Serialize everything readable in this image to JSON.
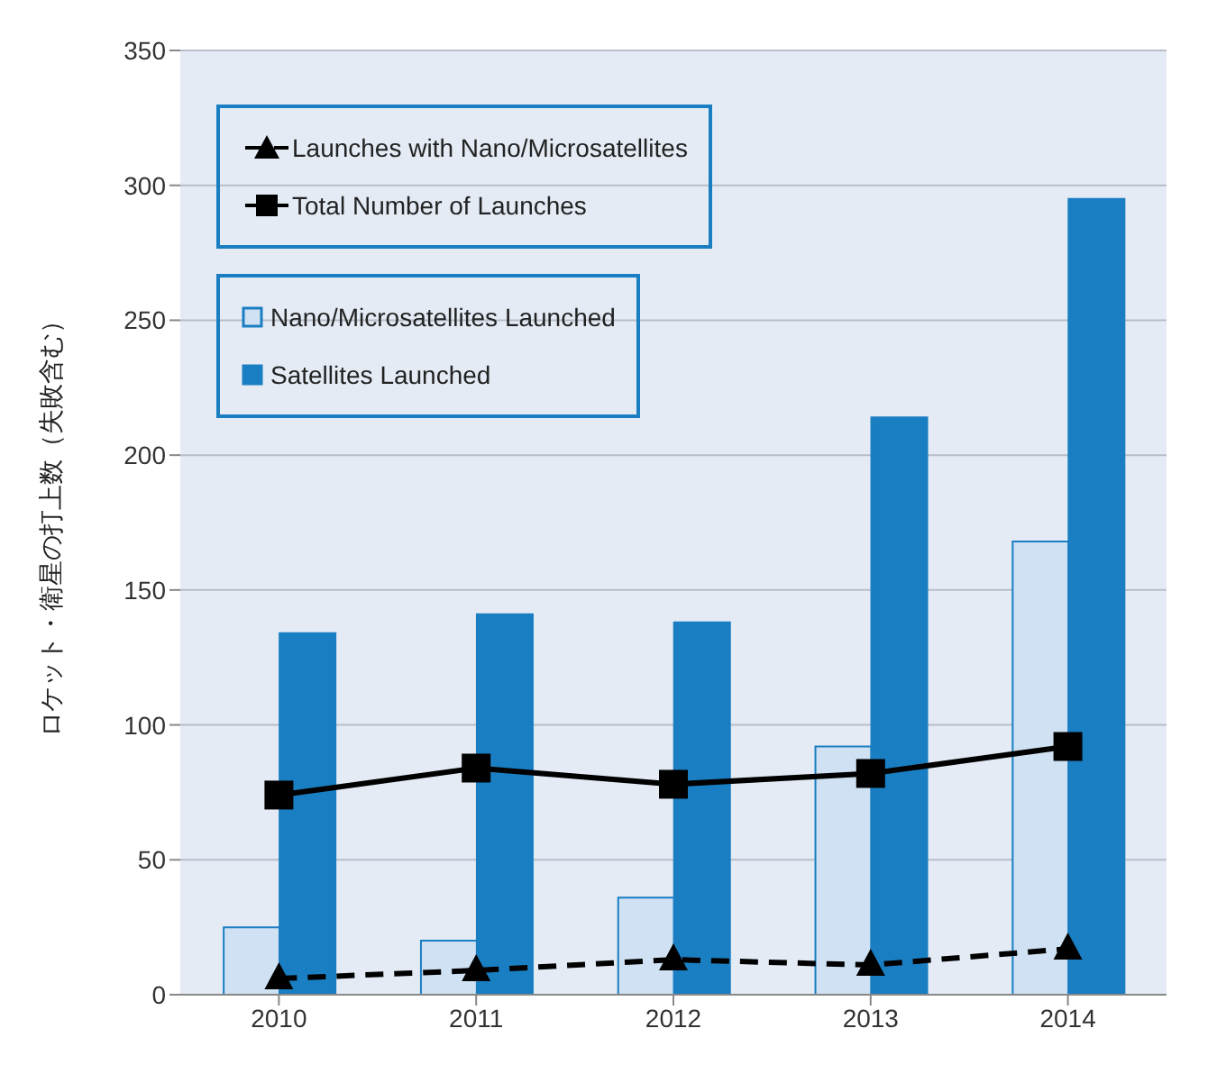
{
  "chart_data": {
    "type": "bar",
    "ylabel": "ロケット・衛星の打上数（失敗含む）",
    "categories": [
      "2010",
      "2011",
      "2012",
      "2013",
      "2014"
    ],
    "series": [
      {
        "name": "Launches with Nano/Microsatellites",
        "type": "line",
        "color": "#000000",
        "marker": "triangle",
        "line_style": "dashed",
        "values": [
          6,
          9,
          13,
          11,
          17
        ]
      },
      {
        "name": "Total Number of Launches",
        "type": "line",
        "color": "#000000",
        "marker": "square",
        "line_style": "solid",
        "values": [
          74,
          84,
          78,
          82,
          92
        ]
      },
      {
        "name": "Nano/Microsatellites Launched",
        "color": "#cfe1f2",
        "values": [
          25,
          20,
          36,
          92,
          168
        ]
      },
      {
        "name": "Satellites Launched",
        "color": "#1a7ec2",
        "values": [
          134,
          141,
          138,
          214,
          295
        ]
      }
    ],
    "ylim": [
      0,
      350
    ],
    "yticks": [
      0,
      50,
      100,
      150,
      200,
      250,
      300,
      350
    ],
    "grid": "y",
    "legend": "top left"
  }
}
